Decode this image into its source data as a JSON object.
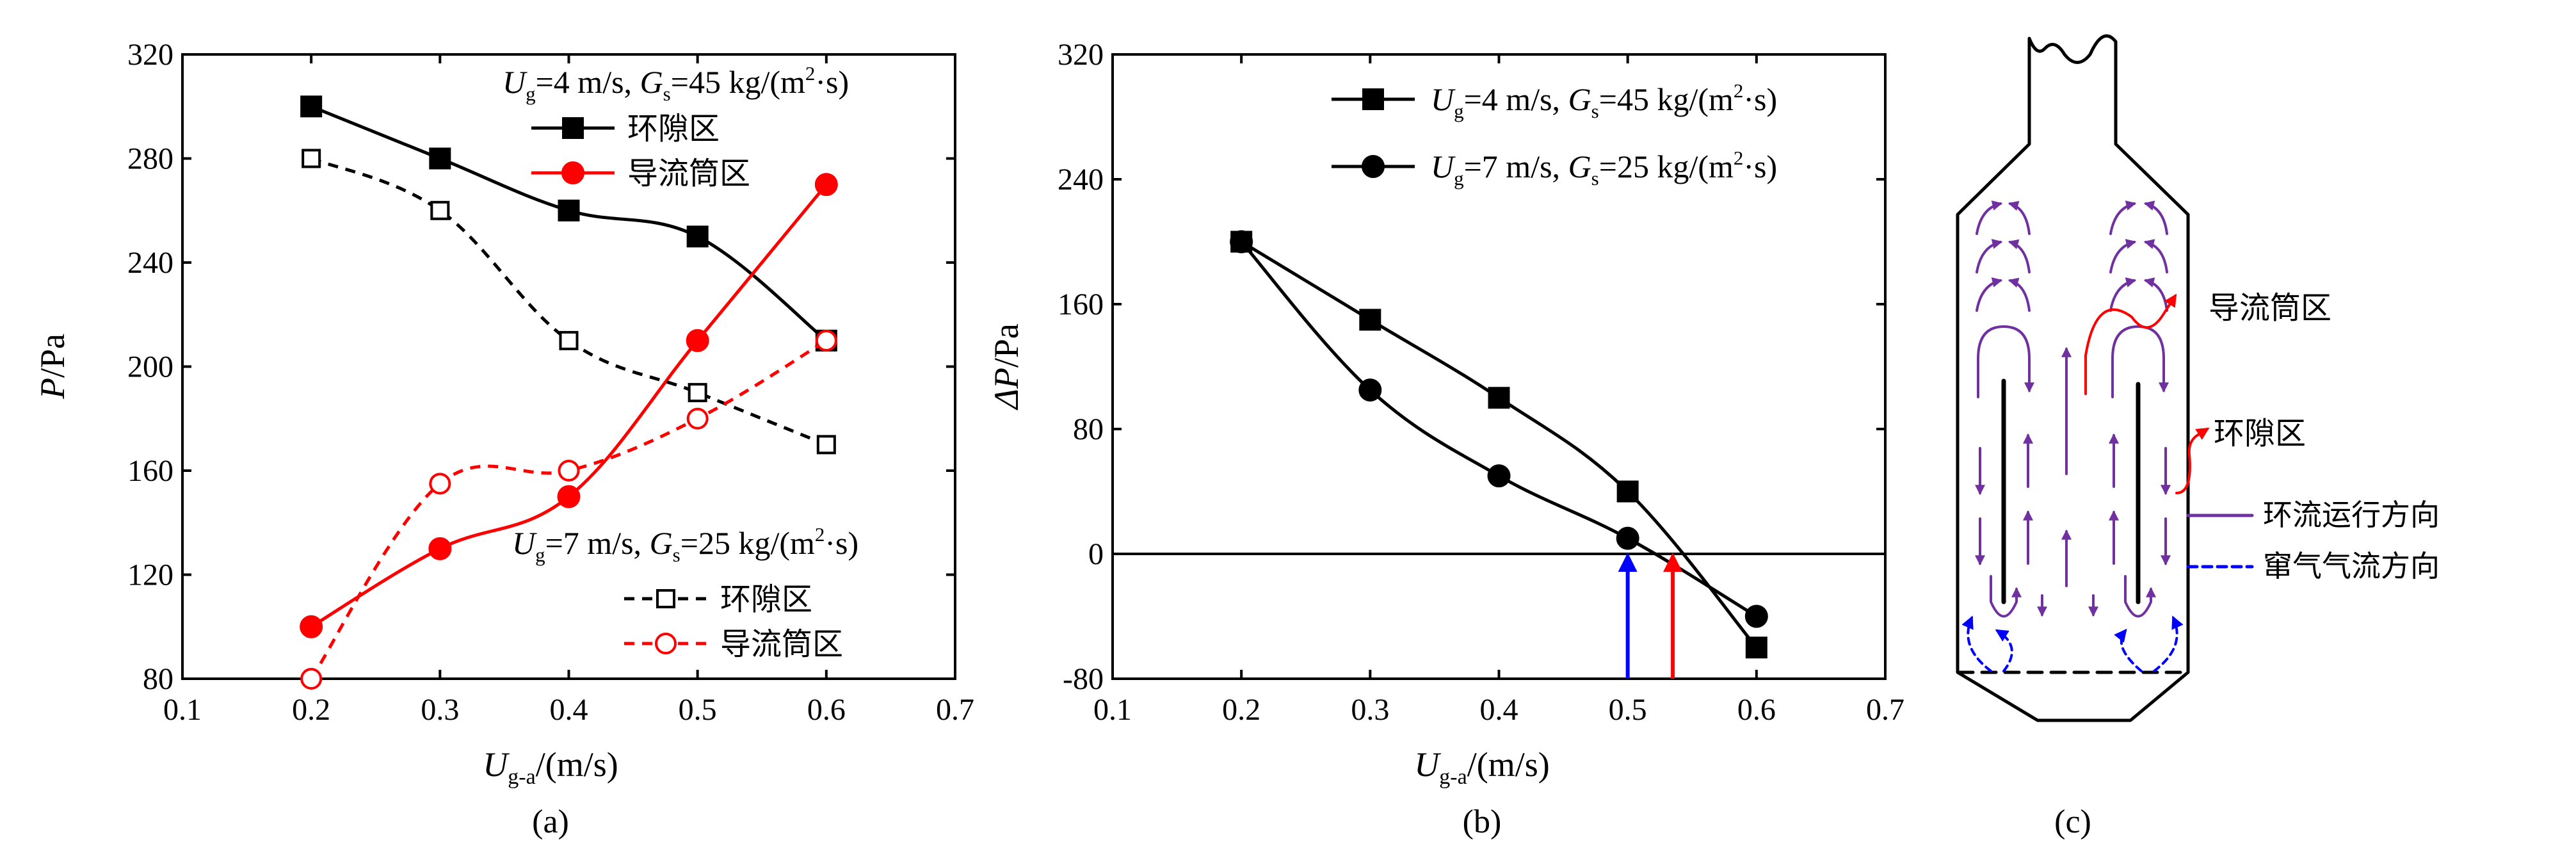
{
  "colors": {
    "black": "#000000",
    "red": "#ff0000",
    "blue": "#0000ff",
    "purple": "#7030a0"
  },
  "chart_data": [
    {
      "panel": "(a)",
      "type": "line",
      "xlabel": {
        "main": "U",
        "sub": "g-a",
        "rest": "/(m/s)"
      },
      "ylabel": {
        "main": "P",
        "rest": "/Pa"
      },
      "xlim": [
        0.1,
        0.7
      ],
      "ylim": [
        80,
        320
      ],
      "xticks": [
        "0.1",
        "0.2",
        "0.3",
        "0.4",
        "0.5",
        "0.6",
        "0.7"
      ],
      "yticks": [
        "80",
        "120",
        "160",
        "200",
        "240",
        "280",
        "320"
      ],
      "legend_groups": [
        {
          "header": {
            "u": "U",
            "us": "g",
            "uv": "=4 m/s, ",
            "g": "G",
            "gs": "s",
            "gv": "=45 kg/(m",
            "sup": "2",
            "end": "·s)"
          }
        },
        {
          "header": {
            "u": "U",
            "us": "g",
            "uv": "=7 m/s, ",
            "g": "G",
            "gs": "s",
            "gv": "=25 kg/(m",
            "sup": "2",
            "end": "·s)"
          }
        }
      ],
      "series": [
        {
          "name": "环隙区",
          "group": 0,
          "color": "#000000",
          "marker": "square-filled",
          "dashed": false,
          "x": [
            0.2,
            0.3,
            0.4,
            0.5,
            0.6
          ],
          "y": [
            300,
            280,
            260,
            250,
            210
          ]
        },
        {
          "name": "导流筒区",
          "group": 0,
          "color": "#ff0000",
          "marker": "circle-filled",
          "dashed": false,
          "x": [
            0.2,
            0.3,
            0.4,
            0.5,
            0.6
          ],
          "y": [
            100,
            130,
            150,
            210,
            270
          ]
        },
        {
          "name": "环隙区",
          "group": 1,
          "color": "#000000",
          "marker": "square-open",
          "dashed": true,
          "x": [
            0.2,
            0.3,
            0.4,
            0.5,
            0.6
          ],
          "y": [
            280,
            260,
            210,
            190,
            170
          ]
        },
        {
          "name": "导流筒区",
          "group": 1,
          "color": "#ff0000",
          "marker": "circle-open",
          "dashed": true,
          "x": [
            0.2,
            0.3,
            0.4,
            0.5,
            0.6
          ],
          "y": [
            80,
            155,
            160,
            180,
            210
          ]
        }
      ]
    },
    {
      "panel": "(b)",
      "type": "line",
      "xlabel": {
        "main": "U",
        "sub": "g-a",
        "rest": "/(m/s)"
      },
      "ylabel": {
        "main": "ΔP",
        "rest": "/Pa"
      },
      "xlim": [
        0.1,
        0.7
      ],
      "ylim": [
        -80,
        320
      ],
      "xticks": [
        "0.1",
        "0.2",
        "0.3",
        "0.4",
        "0.5",
        "0.6",
        "0.7"
      ],
      "yticks": [
        "-80",
        "0",
        "80",
        "160",
        "240",
        "320"
      ],
      "zero_line": 0,
      "series": [
        {
          "legend": {
            "u": "U",
            "us": "g",
            "uv": "=4 m/s, ",
            "g": "G",
            "gs": "s",
            "gv": "=45 kg/(m",
            "sup": "2",
            "end": "·s)"
          },
          "color": "#000000",
          "marker": "square-filled",
          "x": [
            0.2,
            0.3,
            0.4,
            0.5,
            0.6
          ],
          "y": [
            200,
            150,
            100,
            40,
            -60
          ]
        },
        {
          "legend": {
            "u": "U",
            "us": "g",
            "uv": "=7 m/s, ",
            "g": "G",
            "gs": "s",
            "gv": "=25 kg/(m",
            "sup": "2",
            "end": "·s)"
          },
          "color": "#000000",
          "marker": "circle-filled",
          "x": [
            0.2,
            0.3,
            0.4,
            0.5,
            0.6
          ],
          "y": [
            200,
            105,
            50,
            10,
            -40
          ]
        }
      ],
      "arrows": [
        {
          "x": 0.5,
          "color": "#0000ff"
        },
        {
          "x": 0.535,
          "color": "#ff0000"
        }
      ]
    }
  ],
  "panel_labels": [
    "(a)",
    "(b)",
    "(c)"
  ],
  "diagram": {
    "labels": {
      "draft_tube": "导流筒区",
      "annulus": "环隙区",
      "circulation": "环流运行方向",
      "aeration": "窜气气流方向"
    }
  }
}
